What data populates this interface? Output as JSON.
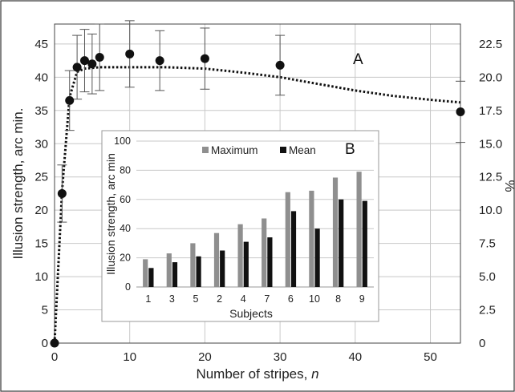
{
  "chart_data": [
    {
      "panel": "A",
      "type": "scatter",
      "xlabel": "Number of stripes, n",
      "ylabel": "Illusion strength, arc min.",
      "y2label": "%",
      "xlim": [
        0,
        54
      ],
      "ylim": [
        0,
        48
      ],
      "y2lim": [
        0,
        24
      ],
      "xticks": [
        "0",
        "10",
        "20",
        "30",
        "40",
        "50"
      ],
      "yticks": [
        "0",
        "5",
        "10",
        "15",
        "20",
        "25",
        "30",
        "35",
        "40",
        "45"
      ],
      "y2ticks": [
        "0",
        "2.5",
        "5.0",
        "7.5",
        "10.0",
        "12.5",
        "15.0",
        "17.5",
        "20.0",
        "22.5"
      ],
      "grid": true,
      "points": [
        {
          "x": 0,
          "y": 0,
          "err": 0
        },
        {
          "x": 1,
          "y": 22.5,
          "err": 4.3
        },
        {
          "x": 2,
          "y": 36.5,
          "err": 4.5
        },
        {
          "x": 3,
          "y": 41.5,
          "err": 4.8
        },
        {
          "x": 4,
          "y": 42.5,
          "err": 4.7
        },
        {
          "x": 5,
          "y": 42.0,
          "err": 4.5
        },
        {
          "x": 6,
          "y": 43.0,
          "err": 5.0
        },
        {
          "x": 10,
          "y": 43.5,
          "err": 5.0
        },
        {
          "x": 14,
          "y": 42.5,
          "err": 4.5
        },
        {
          "x": 20,
          "y": 42.8,
          "err": 4.6
        },
        {
          "x": 30,
          "y": 41.8,
          "err": 4.5
        },
        {
          "x": 54,
          "y": 34.8,
          "err": 4.6
        }
      ],
      "fit": [
        {
          "x": 0,
          "y": 0
        },
        {
          "x": 1,
          "y": 23
        },
        {
          "x": 2,
          "y": 37
        },
        {
          "x": 3,
          "y": 40.8
        },
        {
          "x": 4,
          "y": 41.3
        },
        {
          "x": 6,
          "y": 41.5
        },
        {
          "x": 10,
          "y": 41.5
        },
        {
          "x": 15,
          "y": 41.5
        },
        {
          "x": 20,
          "y": 41.3
        },
        {
          "x": 25,
          "y": 40.7
        },
        {
          "x": 30,
          "y": 40.0
        },
        {
          "x": 35,
          "y": 39.0
        },
        {
          "x": 40,
          "y": 38.0
        },
        {
          "x": 45,
          "y": 37.2
        },
        {
          "x": 50,
          "y": 36.6
        },
        {
          "x": 54,
          "y": 36.2
        }
      ]
    },
    {
      "panel": "B",
      "type": "bar",
      "xlabel": "Subjects",
      "ylabel": "Illusion strength, arc min",
      "ylim": [
        0,
        100
      ],
      "yticks": [
        "0",
        "20",
        "40",
        "60",
        "80",
        "100"
      ],
      "grid": true,
      "legend_position": "top",
      "categories": [
        "1",
        "3",
        "5",
        "2",
        "4",
        "7",
        "6",
        "10",
        "8",
        "9"
      ],
      "series": [
        {
          "name": "Maximum",
          "color": "#8f8f8f",
          "values": [
            19,
            23,
            30,
            37,
            43,
            47,
            65,
            66,
            75,
            79
          ]
        },
        {
          "name": "Mean",
          "color": "#111111",
          "values": [
            13,
            17,
            21,
            25,
            31,
            34,
            52,
            40,
            60,
            59
          ]
        }
      ]
    }
  ],
  "labels": {
    "panel_a": "A",
    "panel_b": "B",
    "x_title_main": "Number of stripes, ",
    "x_title_var": "n",
    "y_title_left": "Illusion strength, arc min.",
    "y_title_right": "%",
    "inset_x_title": "Subjects",
    "inset_y_title": "Illusion strength, arc min",
    "legend_max": "Maximum",
    "legend_mean": "Mean"
  },
  "colors": {
    "grid": "#c8c8c8",
    "marker": "#111111",
    "bar_max": "#8f8f8f",
    "bar_mean": "#111111"
  }
}
